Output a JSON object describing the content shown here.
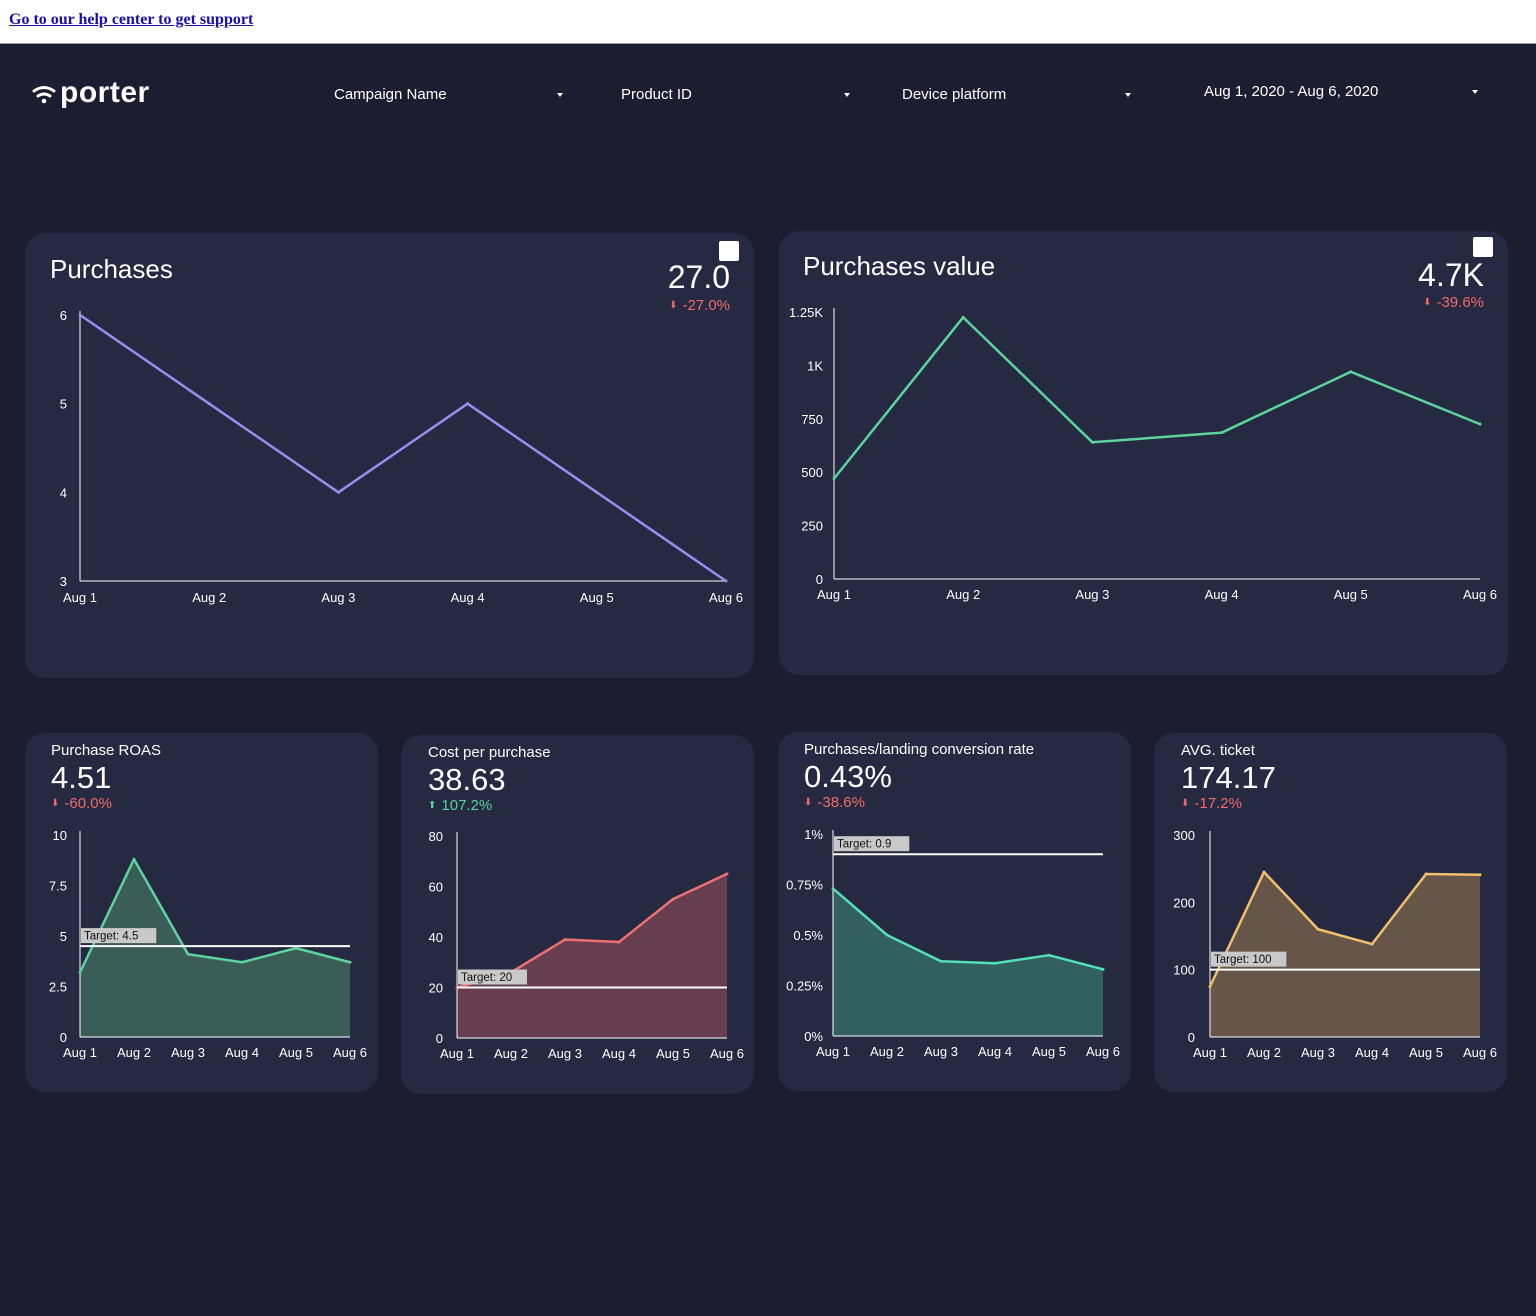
{
  "help_link": "Go to our help center to get support",
  "brand": "porter",
  "filters": [
    {
      "label": "Campaign Name"
    },
    {
      "label": "Product ID"
    },
    {
      "label": "Device platform"
    },
    {
      "label": "Aug 1, 2020 - Aug 6, 2020"
    }
  ],
  "colors": {
    "background": "#1c1d30",
    "card": "#252941",
    "purple": "#9d8cf0",
    "green": "#5dd39e",
    "red": "#ef6b6b",
    "teal": "#52e0b8",
    "orange": "#f1bf6a"
  },
  "cards": {
    "purchases": {
      "title": "Purchases",
      "value": "27.0",
      "delta": "-27.0%"
    },
    "purchases_value": {
      "title": "Purchases value",
      "value": "4.7K",
      "delta": "-39.6%"
    },
    "roas": {
      "title": "Purchase ROAS",
      "value": "4.51",
      "delta": "-60.0%",
      "target_label": "Target: 4.5"
    },
    "cpp": {
      "title": "Cost per purchase",
      "value": "38.63",
      "delta": "107.2%",
      "target_label": "Target: 20"
    },
    "conv": {
      "title": "Purchases/landing conversion rate",
      "value": "0.43%",
      "delta": "-38.6%",
      "target_label": "Target: 0.9"
    },
    "ticket": {
      "title": "AVG. ticket",
      "value": "174.17",
      "delta": "-17.2%",
      "target_label": "Target: 100"
    }
  },
  "chart_data": [
    {
      "type": "line",
      "id": "purchases",
      "x": [
        "Aug 1",
        "Aug 2",
        "Aug 3",
        "Aug 4",
        "Aug 5",
        "Aug 6"
      ],
      "values": [
        6,
        5,
        4,
        5,
        4,
        3
      ],
      "ylim": [
        3,
        6
      ],
      "yticks": [
        "3",
        "4",
        "5",
        "6"
      ],
      "color": "#9d8cf0"
    },
    {
      "type": "line",
      "id": "purchases_value",
      "x": [
        "Aug 1",
        "Aug 2",
        "Aug 3",
        "Aug 4",
        "Aug 5",
        "Aug 6"
      ],
      "values": [
        470,
        1225,
        640,
        685,
        970,
        725
      ],
      "ylim": [
        0,
        1250
      ],
      "yticks": [
        "0",
        "250",
        "500",
        "750",
        "1K",
        "1.25K"
      ],
      "color": "#5dd39e"
    },
    {
      "type": "area",
      "id": "roas",
      "x": [
        "Aug 1",
        "Aug 2",
        "Aug 3",
        "Aug 4",
        "Aug 5",
        "Aug 6"
      ],
      "values": [
        3.2,
        8.8,
        4.1,
        3.7,
        4.4,
        3.7
      ],
      "ylim": [
        0,
        10
      ],
      "yticks": [
        "0",
        "2.5",
        "5",
        "7.5",
        "10"
      ],
      "target": 4.5,
      "color": "#5dd39e",
      "fill": "#3b5d57"
    },
    {
      "type": "area",
      "id": "cpp",
      "x": [
        "Aug 1",
        "Aug 2",
        "Aug 3",
        "Aug 4",
        "Aug 5",
        "Aug 6"
      ],
      "values": [
        20,
        26,
        39,
        38,
        55,
        65
      ],
      "ylim": [
        0,
        80
      ],
      "yticks": [
        "0",
        "20",
        "40",
        "60",
        "80"
      ],
      "target": 20,
      "color": "#ef7070",
      "fill": "#673e4f"
    },
    {
      "type": "area",
      "id": "conv",
      "x": [
        "Aug 1",
        "Aug 2",
        "Aug 3",
        "Aug 4",
        "Aug 5",
        "Aug 6"
      ],
      "values": [
        0.73,
        0.5,
        0.37,
        0.36,
        0.4,
        0.33
      ],
      "ylim": [
        0,
        1
      ],
      "yticks": [
        "0%",
        "0.25%",
        "0.5%",
        "0.75%",
        "1%"
      ],
      "target": 0.9,
      "color": "#52e0b8",
      "fill": "#31605f"
    },
    {
      "type": "area",
      "id": "ticket",
      "x": [
        "Aug 1",
        "Aug 2",
        "Aug 3",
        "Aug 4",
        "Aug 5",
        "Aug 6"
      ],
      "values": [
        75,
        245,
        160,
        138,
        242,
        241
      ],
      "ylim": [
        0,
        300
      ],
      "yticks": [
        "0",
        "100",
        "200",
        "300"
      ],
      "target": 100,
      "color": "#f1bf6a",
      "fill": "#66564a"
    }
  ]
}
